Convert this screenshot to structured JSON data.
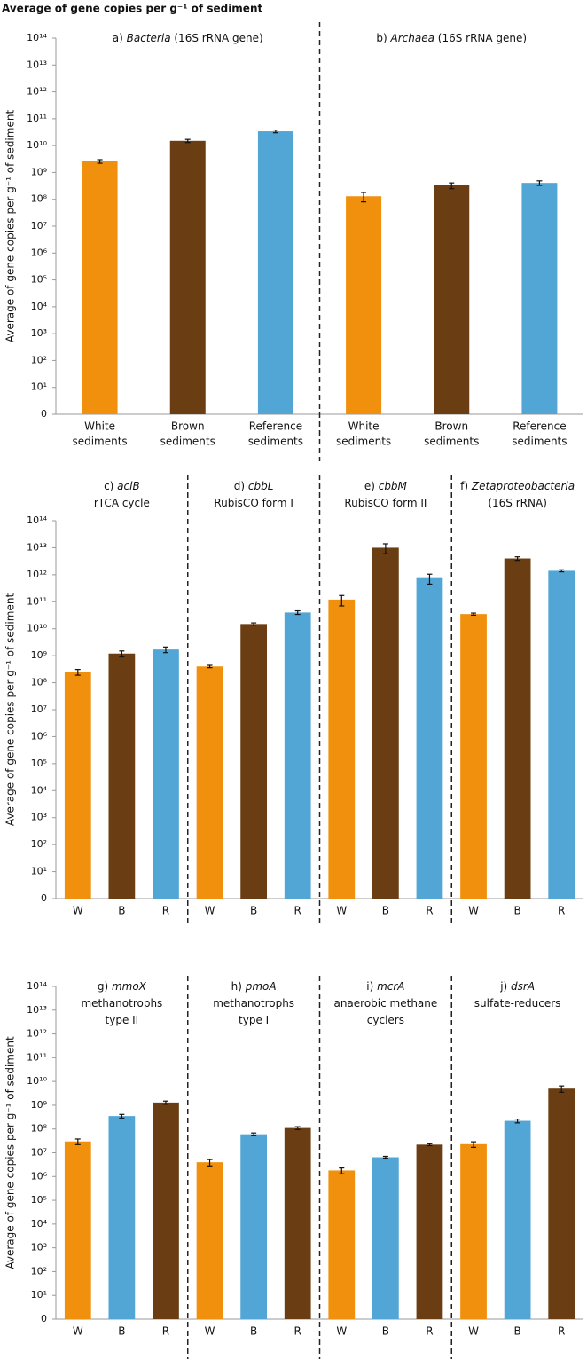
{
  "title": "Average of gene copies per g⁻¹ of sediment",
  "chart_data": [
    {
      "type": "bar",
      "log_scale": true,
      "ylabel": "Average of gene copies per g⁻¹ of sediment",
      "ylim": [
        1,
        100000000000000.0
      ],
      "yticks": [
        {
          "value": 1,
          "label": "0"
        },
        {
          "value": 10.0,
          "label": "10¹"
        },
        {
          "value": 100.0,
          "label": "10²"
        },
        {
          "value": 1000.0,
          "label": "10³"
        },
        {
          "value": 10000.0,
          "label": "10⁴"
        },
        {
          "value": 100000.0,
          "label": "10⁵"
        },
        {
          "value": 1000000.0,
          "label": "10⁶"
        },
        {
          "value": 10000000.0,
          "label": "10⁷"
        },
        {
          "value": 100000000.0,
          "label": "10⁸"
        },
        {
          "value": 1000000000.0,
          "label": "10⁹"
        },
        {
          "value": 10000000000.0,
          "label": "10¹⁰"
        },
        {
          "value": 100000000000.0,
          "label": "10¹¹"
        },
        {
          "value": 1000000000000.0,
          "label": "10¹²"
        },
        {
          "value": 10000000000000.0,
          "label": "10¹³"
        },
        {
          "value": 100000000000000.0,
          "label": "10¹⁴"
        }
      ],
      "panels": [
        {
          "title_lines": [
            [
              {
                "text": "a) "
              },
              {
                "text": "Bacteria",
                "italic": true
              },
              {
                "text": " (16S rRNA gene)"
              }
            ]
          ],
          "categories": [
            [
              "White",
              "sediments"
            ],
            [
              "Brown",
              "sediments"
            ],
            [
              "Reference",
              "sediments"
            ]
          ],
          "colors": [
            "#f0900c",
            "#6b3d12",
            "#52a6d6"
          ],
          "values": [
            2600000000.0,
            15000000000.0,
            34000000000.0
          ],
          "errors": [
            400000000.0,
            2000000000.0,
            4000000000.0
          ]
        },
        {
          "title_lines": [
            [
              {
                "text": "b) "
              },
              {
                "text": "Archaea",
                "italic": true
              },
              {
                "text": " (16S rRNA gene)"
              }
            ]
          ],
          "categories": [
            [
              "White",
              "sediments"
            ],
            [
              "Brown",
              "sediments"
            ],
            [
              "Reference",
              "sediments"
            ]
          ],
          "colors": [
            "#f0900c",
            "#6b3d12",
            "#52a6d6"
          ],
          "values": [
            130000000.0,
            330000000.0,
            410000000.0
          ],
          "errors": [
            50000000.0,
            80000000.0,
            80000000.0
          ]
        }
      ]
    },
    {
      "type": "bar",
      "log_scale": true,
      "ylabel": "Average of gene copies per g⁻¹ of sediment",
      "ylim": [
        1,
        100000000000000.0
      ],
      "yticks": [
        {
          "value": 1,
          "label": "0"
        },
        {
          "value": 10.0,
          "label": "10¹"
        },
        {
          "value": 100.0,
          "label": "10²"
        },
        {
          "value": 1000.0,
          "label": "10³"
        },
        {
          "value": 10000.0,
          "label": "10⁴"
        },
        {
          "value": 100000.0,
          "label": "10⁵"
        },
        {
          "value": 1000000.0,
          "label": "10⁶"
        },
        {
          "value": 10000000.0,
          "label": "10⁷"
        },
        {
          "value": 100000000.0,
          "label": "10⁸"
        },
        {
          "value": 1000000000.0,
          "label": "10⁹"
        },
        {
          "value": 10000000000.0,
          "label": "10¹⁰"
        },
        {
          "value": 100000000000.0,
          "label": "10¹¹"
        },
        {
          "value": 1000000000000.0,
          "label": "10¹²"
        },
        {
          "value": 10000000000000.0,
          "label": "10¹³"
        },
        {
          "value": 100000000000000.0,
          "label": "10¹⁴"
        }
      ],
      "panels": [
        {
          "title_lines": [
            [
              {
                "text": "c) "
              },
              {
                "text": "aclB",
                "italic": true
              }
            ],
            [
              {
                "text": "rTCA cycle"
              }
            ]
          ],
          "categories": [
            [
              "W"
            ],
            [
              "B"
            ],
            [
              "R"
            ]
          ],
          "colors": [
            "#f0900c",
            "#6b3d12",
            "#52a6d6"
          ],
          "values": [
            250000000.0,
            1200000000.0,
            1700000000.0
          ],
          "errors": [
            60000000.0,
            300000000.0,
            400000000.0
          ]
        },
        {
          "title_lines": [
            [
              {
                "text": "d) "
              },
              {
                "text": "cbbL",
                "italic": true
              }
            ],
            [
              {
                "text": "RubisCO form I"
              }
            ]
          ],
          "categories": [
            [
              "W"
            ],
            [
              "B"
            ],
            [
              "R"
            ]
          ],
          "colors": [
            "#f0900c",
            "#6b3d12",
            "#52a6d6"
          ],
          "values": [
            400000000.0,
            15000000000.0,
            40000000000.0
          ],
          "errors": [
            40000000.0,
            1500000000.0,
            6000000000.0
          ]
        },
        {
          "title_lines": [
            [
              {
                "text": "e) "
              },
              {
                "text": "cbbM",
                "italic": true
              }
            ],
            [
              {
                "text": "RubisCO form II"
              }
            ]
          ],
          "categories": [
            [
              "W"
            ],
            [
              "B"
            ],
            [
              "R"
            ]
          ],
          "colors": [
            "#f0900c",
            "#6b3d12",
            "#52a6d6"
          ],
          "values": [
            120000000000.0,
            10000000000000.0,
            750000000000.0
          ],
          "errors": [
            50000000000.0,
            4000000000000.0,
            300000000000.0
          ]
        },
        {
          "title_lines": [
            [
              {
                "text": "f) "
              },
              {
                "text": "Zetaproteobacteria",
                "italic": true
              }
            ],
            [
              {
                "text": "(16S rRNA)"
              }
            ]
          ],
          "categories": [
            [
              "W"
            ],
            [
              "B"
            ],
            [
              "R"
            ]
          ],
          "colors": [
            "#f0900c",
            "#6b3d12",
            "#52a6d6"
          ],
          "values": [
            35000000000.0,
            4000000000000.0,
            1400000000000.0
          ],
          "errors": [
            3000000000.0,
            600000000000.0,
            120000000000.0
          ]
        }
      ]
    },
    {
      "type": "bar",
      "log_scale": true,
      "ylabel": "Average of gene copies per g⁻¹ of sediment",
      "ylim": [
        1,
        100000000000000.0
      ],
      "yticks": [
        {
          "value": 1,
          "label": "0"
        },
        {
          "value": 10.0,
          "label": "10¹"
        },
        {
          "value": 100.0,
          "label": "10²"
        },
        {
          "value": 1000.0,
          "label": "10³"
        },
        {
          "value": 10000.0,
          "label": "10⁴"
        },
        {
          "value": 100000.0,
          "label": "10⁵"
        },
        {
          "value": 1000000.0,
          "label": "10⁶"
        },
        {
          "value": 10000000.0,
          "label": "10⁷"
        },
        {
          "value": 100000000.0,
          "label": "10⁸"
        },
        {
          "value": 1000000000.0,
          "label": "10⁹"
        },
        {
          "value": 10000000000.0,
          "label": "10¹⁰"
        },
        {
          "value": 100000000000.0,
          "label": "10¹¹"
        },
        {
          "value": 1000000000000.0,
          "label": "10¹²"
        },
        {
          "value": 10000000000000.0,
          "label": "10¹³"
        },
        {
          "value": 100000000000000.0,
          "label": "10¹⁴"
        }
      ],
      "panels": [
        {
          "title_lines": [
            [
              {
                "text": "g) "
              },
              {
                "text": "mmoX",
                "italic": true
              }
            ],
            [
              {
                "text": "methanotrophs"
              }
            ],
            [
              {
                "text": "type II"
              }
            ]
          ],
          "categories": [
            [
              "W"
            ],
            [
              "B"
            ],
            [
              "R"
            ]
          ],
          "colors": [
            "#f0900c",
            "#52a6d6",
            "#6b3d12"
          ],
          "values": [
            30000000.0,
            350000000.0,
            1300000000.0
          ],
          "errors": [
            8000000.0,
            60000000.0,
            200000000.0
          ]
        },
        {
          "title_lines": [
            [
              {
                "text": "h) "
              },
              {
                "text": "pmoA",
                "italic": true
              }
            ],
            [
              {
                "text": "methanotrophs"
              }
            ],
            [
              {
                "text": "type I"
              }
            ]
          ],
          "categories": [
            [
              "W"
            ],
            [
              "B"
            ],
            [
              "R"
            ]
          ],
          "colors": [
            "#f0900c",
            "#52a6d6",
            "#6b3d12"
          ],
          "values": [
            4000000.0,
            60000000.0,
            110000000.0
          ],
          "errors": [
            1200000.0,
            8000000.0,
            15000000.0
          ]
        },
        {
          "title_lines": [
            [
              {
                "text": "i) "
              },
              {
                "text": "mcrA",
                "italic": true
              }
            ],
            [
              {
                "text": "anaerobic methane"
              }
            ],
            [
              {
                "text": "cyclers"
              }
            ]
          ],
          "categories": [
            [
              "W"
            ],
            [
              "B"
            ],
            [
              "R"
            ]
          ],
          "colors": [
            "#f0900c",
            "#52a6d6",
            "#6b3d12"
          ],
          "values": [
            1800000.0,
            6500000.0,
            22000000.0
          ],
          "errors": [
            500000.0,
            600000.0,
            2000000.0
          ]
        },
        {
          "title_lines": [
            [
              {
                "text": "j) "
              },
              {
                "text": "dsrA",
                "italic": true
              }
            ],
            [
              {
                "text": "sulfate-reducers"
              }
            ]
          ],
          "categories": [
            [
              "W"
            ],
            [
              "B"
            ],
            [
              "R"
            ]
          ],
          "colors": [
            "#f0900c",
            "#52a6d6",
            "#6b3d12"
          ],
          "values": [
            23000000.0,
            220000000.0,
            5000000000.0
          ],
          "errors": [
            6000000.0,
            40000000.0,
            1500000000.0
          ]
        }
      ]
    }
  ]
}
